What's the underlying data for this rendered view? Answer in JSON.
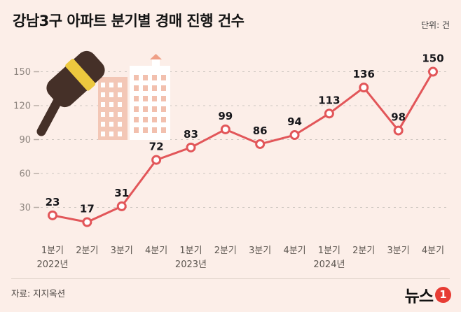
{
  "header": {
    "title": "강남3구 아파트 분기별 경매 진행 건수",
    "unit_label": "단위: 건"
  },
  "chart_data": {
    "type": "line",
    "title": "강남3구 아파트 분기별 경매 진행 건수",
    "unit": "건",
    "categories": [
      "1분기",
      "2분기",
      "3분기",
      "4분기",
      "1분기",
      "2분기",
      "3분기",
      "4분기",
      "1분기",
      "2분기",
      "3분기",
      "4분기"
    ],
    "values": [
      23,
      17,
      31,
      72,
      83,
      99,
      86,
      94,
      113,
      136,
      98,
      150
    ],
    "year_labels": [
      {
        "index": 0,
        "label": "2022년"
      },
      {
        "index": 4,
        "label": "2023년"
      },
      {
        "index": 8,
        "label": "2024년"
      }
    ],
    "y_ticks": [
      30,
      60,
      90,
      120,
      150
    ],
    "ylim": [
      0,
      165
    ],
    "grid": true,
    "legend": "none",
    "line_color": "#e25659",
    "point_fill": "#ffffff",
    "label_color": "#17171b",
    "tick_color": "#8f8680",
    "axis_text_color": "#5c5650",
    "grid_color": "#cdc6c0"
  },
  "footer": {
    "source": "자료: 지지옥션",
    "brand": {
      "text": "뉴스",
      "badge": "1"
    }
  }
}
